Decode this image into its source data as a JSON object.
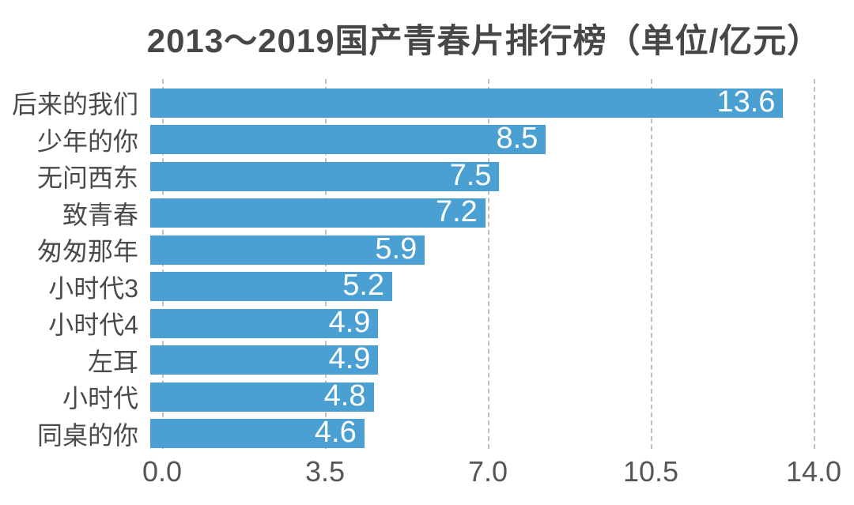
{
  "chart_data": {
    "type": "bar",
    "orientation": "horizontal",
    "title": "2013～2019国产青春片排行榜（单位/亿元）",
    "categories": [
      "后来的我们",
      "少年的你",
      "无问西东",
      "致青春",
      "匆匆那年",
      "小时代3",
      "小时代4",
      "左耳",
      "小时代",
      "同桌的你"
    ],
    "values": [
      13.6,
      8.5,
      7.5,
      7.2,
      5.9,
      5.2,
      4.9,
      4.9,
      4.8,
      4.6
    ],
    "value_labels": [
      "13.6",
      "8.5",
      "7.5",
      "7.2",
      "5.9",
      "5.2",
      "4.9",
      "4.9",
      "4.8",
      "4.6"
    ],
    "xlim": [
      0,
      14
    ],
    "xtick_values": [
      0,
      3.5,
      7,
      10.5,
      14
    ],
    "xtick_labels": [
      "0.0",
      "3.5",
      "7.0",
      "10.5",
      "14.0"
    ],
    "grid": "vertical-dashed",
    "legend_position": "none",
    "value_label_position": "inside-end"
  },
  "colors": {
    "background": "#FFFFFF",
    "bar": "#4AA0D3",
    "value_text": "#FFFFFF",
    "title_text": "#474747",
    "category_text": "#4A4A4A",
    "tick_text": "#565656",
    "gridline": "#BFBFBF"
  }
}
